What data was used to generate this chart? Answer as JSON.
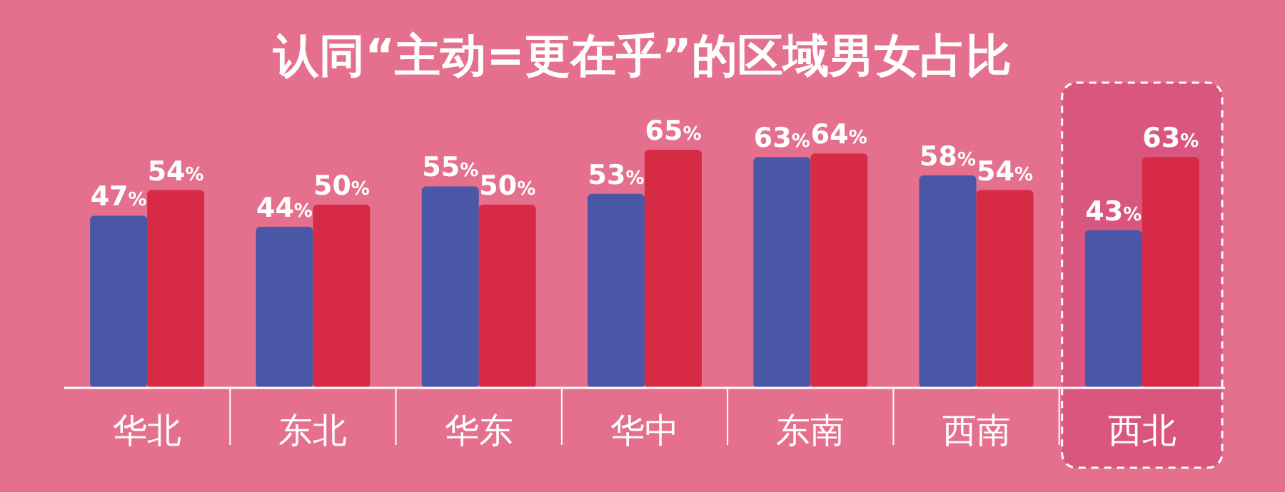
{
  "chart_data": {
    "type": "bar",
    "title": "认同“主动=更在乎”的区域男女占比",
    "categories": [
      "华北",
      "东北",
      "华东",
      "华中",
      "东南",
      "西南",
      "西北"
    ],
    "series": [
      {
        "color": "#4a56a6",
        "values": [
          47,
          44,
          55,
          53,
          63,
          58,
          43
        ],
        "value_labels": [
          "47%",
          "44%",
          "55%",
          "53%",
          "63%",
          "58%",
          "43%"
        ]
      },
      {
        "color": "#d72a44",
        "values": [
          54,
          50,
          50,
          65,
          64,
          54,
          63
        ],
        "value_labels": [
          "54%",
          "50%",
          "50%",
          "65%",
          "64%",
          "54%",
          "63%"
        ]
      }
    ],
    "bands": [
      {
        "axis": "x",
        "from": "西北",
        "to": "西北",
        "color": "#d9567f"
      }
    ]
  }
}
